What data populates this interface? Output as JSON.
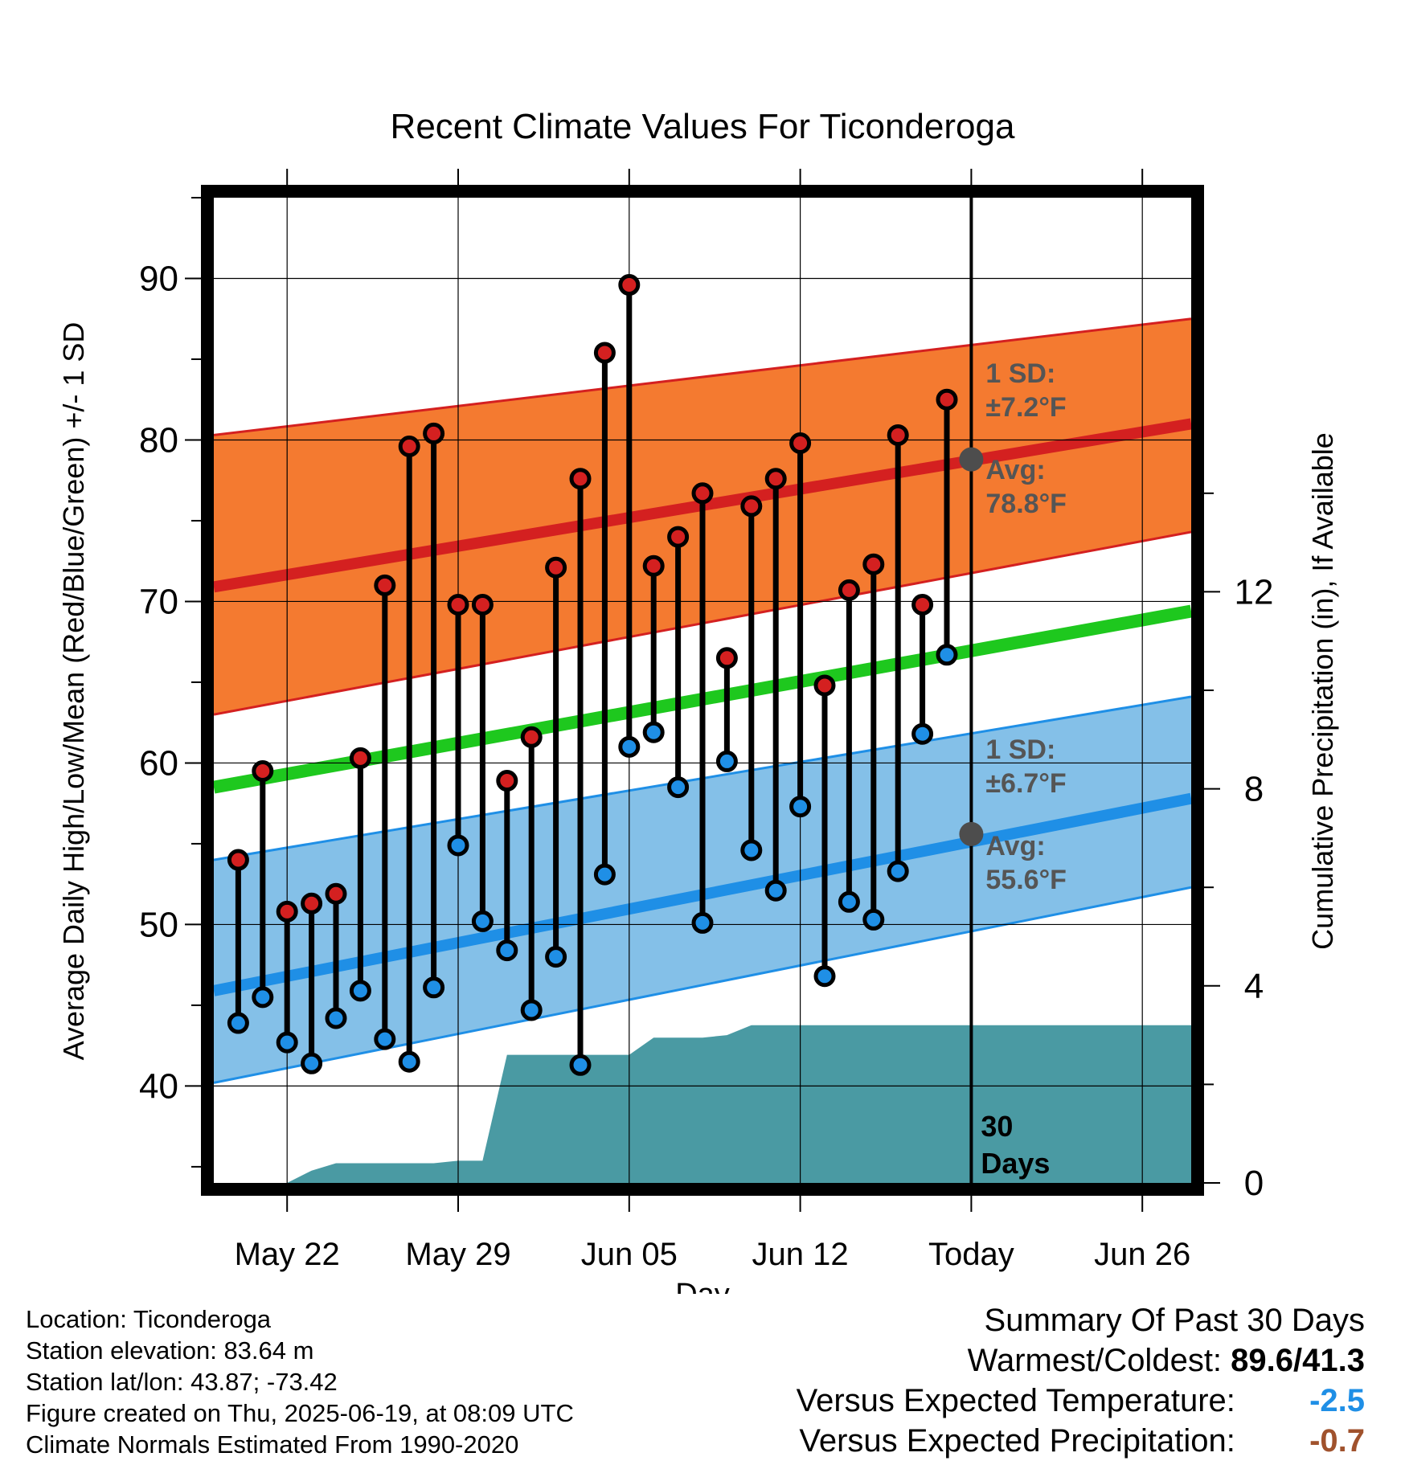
{
  "chart_data": {
    "type": "line",
    "title": "Recent Climate Values For Ticonderoga",
    "xlabel": "Day",
    "ylabel": "Average Daily High/Low/Mean (Red/Blue/Green) +/- 1 SD",
    "y2label": "Cumulative Precipitation (in), If Available",
    "x_ticks": [
      "May 22",
      "May 29",
      "Jun 05",
      "Jun 12",
      "Today",
      "Jun 26"
    ],
    "x_tick_days": [
      -28,
      -21,
      -14,
      -7,
      0,
      7
    ],
    "xlim_days": [
      -31,
      9
    ],
    "ylim": [
      34,
      95
    ],
    "y_ticks": [
      40,
      50,
      60,
      70,
      80,
      90
    ],
    "y2lim": [
      0,
      20
    ],
    "y2_ticks": [
      0,
      4,
      8,
      12
    ],
    "grid": true,
    "today_marker_label": "30 Days",
    "observed_days": [
      -30,
      -29,
      -28,
      -27,
      -26,
      -25,
      -24,
      -23,
      -22,
      -21,
      -20,
      -19,
      -18,
      -17,
      -16,
      -15,
      -14,
      -13,
      -12,
      -11,
      -10,
      -9,
      -8,
      -7,
      -6,
      -5,
      -4,
      -3,
      -2,
      -1
    ],
    "series": [
      {
        "name": "Daily High",
        "color": "#d42020",
        "values": [
          54.0,
          59.5,
          50.8,
          51.3,
          51.9,
          60.3,
          71.0,
          79.6,
          80.4,
          69.8,
          69.8,
          58.9,
          61.6,
          72.1,
          77.6,
          85.4,
          89.6,
          72.2,
          74.0,
          76.7,
          66.5,
          75.9,
          77.6,
          79.8,
          64.8,
          70.7,
          72.3,
          80.3,
          69.8,
          82.5
        ]
      },
      {
        "name": "Daily Low",
        "color": "#1f8fe6",
        "values": [
          43.9,
          45.5,
          42.7,
          41.4,
          44.2,
          45.9,
          42.9,
          41.5,
          46.1,
          54.9,
          50.2,
          48.4,
          44.7,
          48.0,
          41.3,
          53.1,
          61.0,
          61.9,
          58.5,
          50.1,
          60.1,
          54.6,
          52.1,
          57.3,
          46.8,
          51.4,
          50.3,
          53.3,
          61.8,
          66.7
        ]
      }
    ],
    "normals": {
      "high_mean": {
        "color": "#d42020",
        "start": 70.9,
        "end": 81.0
      },
      "high_band": {
        "color": "#f47a30",
        "start_lower": 63.0,
        "start_upper": 80.3,
        "end_lower": 74.3,
        "end_upper": 87.5
      },
      "mean": {
        "color": "#1ec81e",
        "start": 58.5,
        "end": 69.4
      },
      "low_mean": {
        "color": "#1f8fe6",
        "start": 45.9,
        "end": 57.8
      },
      "low_band": {
        "color": "#84c0e8",
        "start_lower": 40.2,
        "start_upper": 54.0,
        "end_lower": 52.3,
        "end_upper": 64.1
      }
    },
    "precipitation": {
      "color": "#4a9aa3",
      "days": [
        -31,
        -28,
        -27,
        -26,
        -25,
        -24,
        -23,
        -22,
        -21,
        -20,
        -19,
        -18,
        -17,
        -16,
        -15,
        -14,
        -13,
        -12,
        -11,
        -10,
        -9,
        -8,
        -7,
        -6,
        -5,
        -4,
        -3,
        -2,
        -1,
        0,
        9
      ],
      "values": [
        0.0,
        0.0,
        0.25,
        0.4,
        0.4,
        0.4,
        0.4,
        0.4,
        0.45,
        0.45,
        2.6,
        2.6,
        2.6,
        2.6,
        2.6,
        2.6,
        2.95,
        2.95,
        2.95,
        3.0,
        3.2,
        3.2,
        3.2,
        3.2,
        3.2,
        3.2,
        3.2,
        3.2,
        3.2,
        3.2,
        3.2
      ]
    },
    "annotations": {
      "high_sd": "1 SD:",
      "high_sd_value": "±7.2°F",
      "high_avg": "Avg:",
      "high_avg_value": "78.8°F",
      "high_avg_today": 78.8,
      "low_sd": "1 SD:",
      "low_sd_value": "±6.7°F",
      "low_avg": "Avg:",
      "low_avg_value": "55.6°F",
      "low_avg_today": 55.6
    }
  },
  "footer": {
    "location": "Location: Ticonderoga",
    "elevation": "Station elevation: 83.64 m",
    "latlon": "Station lat/lon: 43.87; -73.42",
    "created": "Figure created on Thu, 2025-06-19, at 08:09 UTC",
    "normals": "Climate Normals Estimated From 1990-2020"
  },
  "summary": {
    "heading": "Summary Of Past 30 Days",
    "warm_cold_label": "Warmest/Coldest:",
    "warm_cold_value": "89.6/41.3",
    "temp_label": "Versus Expected Temperature:",
    "temp_value": "-2.5",
    "precip_label": "Versus Expected Precipitation:",
    "precip_value": "-0.7"
  }
}
